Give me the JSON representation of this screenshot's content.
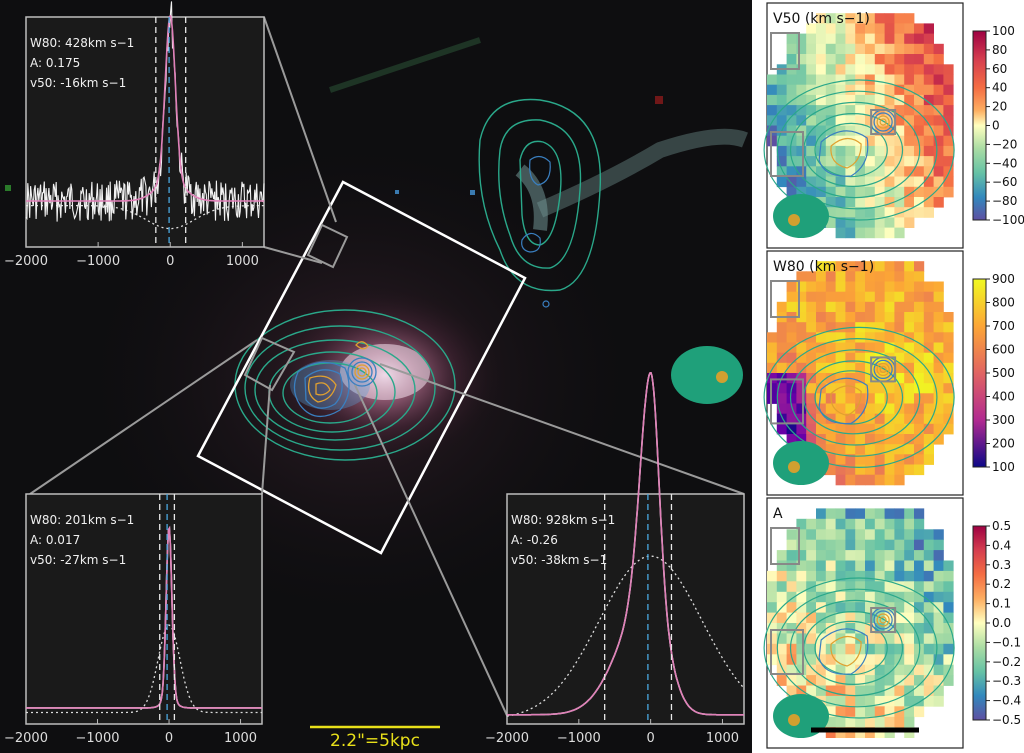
{
  "scale_bar": {
    "label": "2.2\"=5kpc",
    "color": "#e8e01a"
  },
  "colors": {
    "sdss_contour": "#2aa88a",
    "oiii_contour": "#3a7fc0",
    "ha_contour": "#e0a030",
    "spectrum_white": "#f2f2f2",
    "spectrum_fit": "#e080b8",
    "dashed_blue": "#4aa8e0"
  },
  "chart_data": [
    {
      "type": "line",
      "panel": "spectrum-top-left",
      "annotations": {
        "w80": "W$_{80}$: 428km s$^{-1}$",
        "A": "A: 0.175",
        "v50": "v$_{50}$: -16km s$^{-1}$"
      },
      "annotation_text": [
        "W80: 428km s−1",
        "A: 0.175",
        "v50: -16km s−1"
      ],
      "xlim": [
        -2000,
        1300
      ],
      "xticks": [
        "−2000",
        "−1000",
        "0",
        "1000"
      ],
      "vlines_white": [
        -200,
        214
      ],
      "vline_blue": -16
    },
    {
      "type": "line",
      "panel": "spectrum-bottom-left",
      "annotation_text": [
        "W80: 201km s−1",
        "A: 0.017",
        "v50: -27km s−1"
      ],
      "xlim": [
        -2000,
        1300
      ],
      "xticks": [
        "−2000",
        "−1000",
        "0",
        "1000"
      ],
      "vlines_white": [
        -130,
        75
      ],
      "vline_blue": -27
    },
    {
      "type": "line",
      "panel": "spectrum-bottom-right",
      "annotation_text": [
        "W80: 928km s−1",
        "A: -0.26",
        "v50: -38km s−1"
      ],
      "xlim": [
        -2000,
        1300
      ],
      "xticks": [
        "−2000",
        "−1000",
        "0",
        "1000"
      ],
      "vlines_white": [
        -640,
        290
      ],
      "vline_blue": -38
    },
    {
      "type": "heatmap",
      "panel": "map-v50",
      "title": "V50 (km s−1)",
      "colorbar_ticks": [
        "100",
        "80",
        "60",
        "40",
        "20",
        "0",
        "−20",
        "−40",
        "−60",
        "−80",
        "−100"
      ],
      "range": [
        -100,
        100
      ],
      "colormap": "Spectral_r"
    },
    {
      "type": "heatmap",
      "panel": "map-w80",
      "title": "W80 (km s−1)",
      "colorbar_ticks": [
        "900",
        "800",
        "700",
        "600",
        "500",
        "400",
        "300",
        "200",
        "100"
      ],
      "range": [
        50,
        900
      ],
      "colormap": "plasma"
    },
    {
      "type": "heatmap",
      "panel": "map-asym",
      "title": "A",
      "colorbar_ticks": [
        "0.5",
        "0.4",
        "0.3",
        "0.2",
        "0.1",
        "0.0",
        "−0.1",
        "−0.2",
        "−0.3",
        "−0.4",
        "−0.5"
      ],
      "range": [
        -0.5,
        0.5
      ],
      "colormap": "Spectral_r"
    }
  ]
}
